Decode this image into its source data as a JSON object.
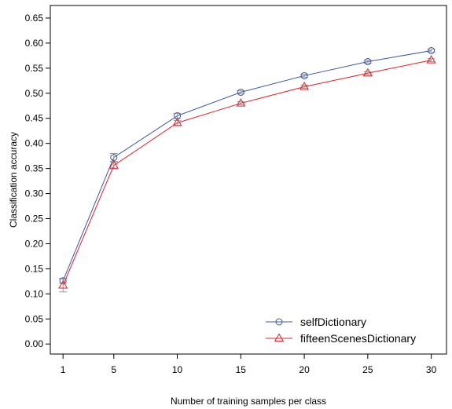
{
  "chart_data": {
    "type": "line",
    "title": "",
    "xlabel": "Number of training samples per class",
    "ylabel": "Classification accuracy",
    "x": [
      1,
      5,
      10,
      15,
      20,
      25,
      30
    ],
    "xticks": [
      "1",
      "5",
      "10",
      "15",
      "20",
      "25",
      "30"
    ],
    "yticks": [
      "0.00",
      "0.05",
      "0.10",
      "0.15",
      "0.20",
      "0.25",
      "0.30",
      "0.35",
      "0.40",
      "0.45",
      "0.50",
      "0.55",
      "0.60",
      "0.65"
    ],
    "xlim": [
      0,
      31.2
    ],
    "ylim": [
      -0.02,
      0.675
    ],
    "grid": false,
    "legend_position": "bottom-right",
    "series": [
      {
        "name": "selfDictionary",
        "color": "#3b58a0",
        "marker": "circle",
        "values": [
          0.126,
          0.372,
          0.455,
          0.502,
          0.535,
          0.563,
          0.585
        ],
        "error": [
          0.005,
          0.008,
          0.005,
          0.003,
          0.003,
          0.003,
          0.003
        ]
      },
      {
        "name": "fifteenScenesDictionary",
        "color": "#e0202a",
        "marker": "triangle",
        "values": [
          0.117,
          0.356,
          0.441,
          0.48,
          0.513,
          0.54,
          0.566
        ],
        "error": [
          0.013,
          0.007,
          0.005,
          0.003,
          0.003,
          0.003,
          0.003
        ]
      }
    ]
  }
}
